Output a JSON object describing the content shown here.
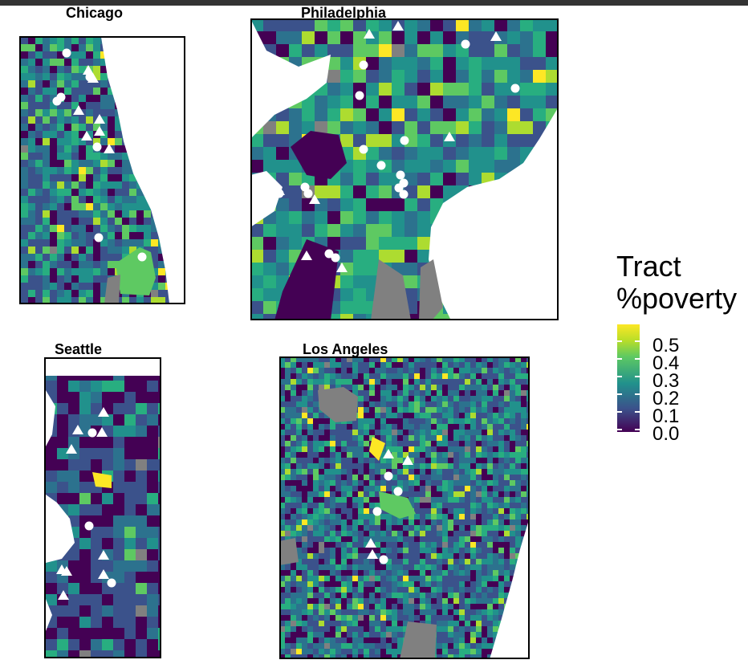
{
  "panels": [
    {
      "id": "chicago",
      "title": "Chicago"
    },
    {
      "id": "philadelphia",
      "title": "Philadelphia"
    },
    {
      "id": "seattle",
      "title": "Seattle"
    },
    {
      "id": "los_angeles",
      "title": "Los Angeles"
    }
  ],
  "legend": {
    "title_line1": "Tract",
    "title_line2": "%poverty",
    "ticks": [
      "0.5",
      "0.4",
      "0.3",
      "0.2",
      "0.1",
      "0.0"
    ],
    "colors": [
      "#fde725",
      "#b8de29",
      "#5ec962",
      "#21918c",
      "#3b528b",
      "#440154"
    ],
    "missing_color": "#808080"
  },
  "markers": {
    "circle_color": "#ffffff",
    "triangle_color": "#ffffff"
  }
}
